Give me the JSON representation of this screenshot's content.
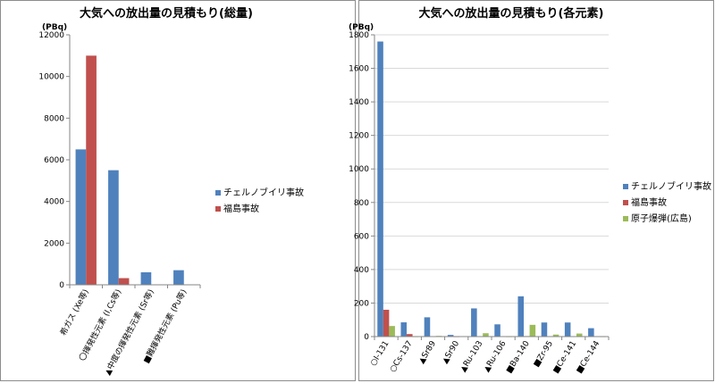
{
  "chart_data": [
    {
      "type": "bar",
      "title": "大気への放出量の見積もり(総量)",
      "ylabel": "(PBq)",
      "ylim": [
        0,
        12000
      ],
      "yticks": [
        0,
        2000,
        4000,
        6000,
        8000,
        10000,
        12000
      ],
      "grid": false,
      "legend_position": "right",
      "categories": [
        "希ガス (Xe等)",
        "〇揮発性元素 (I,Cs等)",
        "▲中度の揮発性元素 (Sr等)",
        "■難揮発性元素 (Pu等)"
      ],
      "series": [
        {
          "name": "チェルノブイリ事故",
          "color": "#4f81bd",
          "values": [
            6500,
            5500,
            600,
            700
          ]
        },
        {
          "name": "福島事故",
          "color": "#c0504d",
          "values": [
            11000,
            320,
            0,
            0
          ]
        }
      ]
    },
    {
      "type": "bar",
      "title": "大気への放出量の見積もり(各元素)",
      "ylabel": "(PBq)",
      "ylim": [
        0,
        1800
      ],
      "yticks": [
        0,
        200,
        400,
        600,
        800,
        1000,
        1200,
        1400,
        1600,
        1800
      ],
      "grid": true,
      "legend_position": "right",
      "categories": [
        "○I-131",
        "○Cs-137",
        "▲Sr89",
        "▲Sr90",
        "▲Ru-103",
        "▲Ru-106",
        "■Ba-140",
        "■Zr-95",
        "■Ce-141",
        "■Ce-144"
      ],
      "series": [
        {
          "name": "チェルノブイリ事故",
          "color": "#4f81bd",
          "values": [
            1760,
            85,
            115,
            10,
            168,
            73,
            240,
            84,
            84,
            50
          ]
        },
        {
          "name": "福島事故",
          "color": "#c0504d",
          "values": [
            160,
            15,
            2,
            0.1,
            0,
            0,
            3,
            0,
            0,
            0
          ]
        },
        {
          "name": "原子爆弾(広島)",
          "color": "#9bbb59",
          "values": [
            63,
            0.09,
            4,
            0.6,
            20,
            0.05,
            70,
            12,
            18,
            0.1
          ]
        }
      ]
    }
  ]
}
